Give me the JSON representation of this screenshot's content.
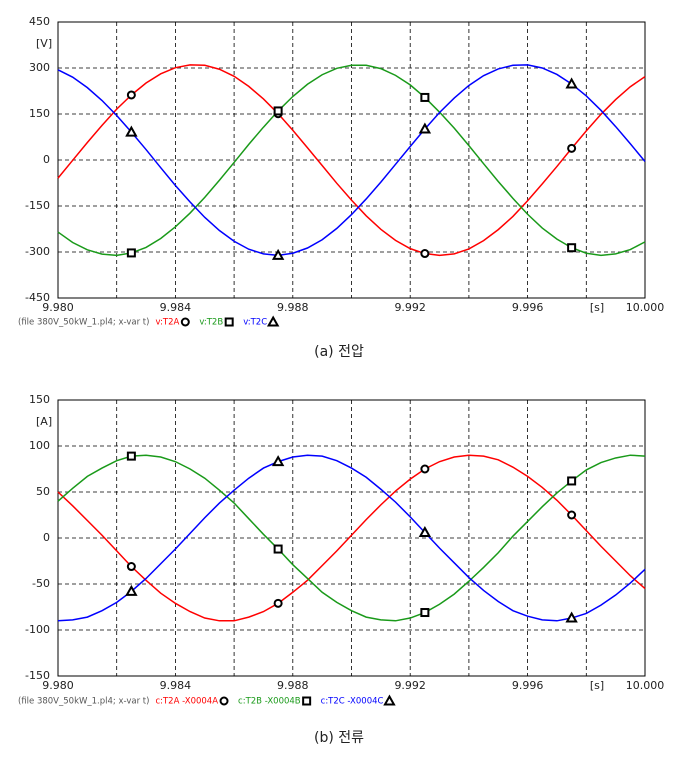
{
  "chart_data": [
    {
      "type": "line",
      "caption": "(a) 전압",
      "y_unit": "[V]",
      "x_unit": "[s]",
      "legend_prefix": "(file 380V_50kW_1.pl4; x-var t)",
      "x": [
        9.98,
        9.9805,
        9.981,
        9.9815,
        9.982,
        9.9825,
        9.983,
        9.9835,
        9.984,
        9.9845,
        9.985,
        9.9855,
        9.986,
        9.9865,
        9.987,
        9.9875,
        9.988,
        9.9885,
        9.989,
        9.9895,
        9.99,
        9.9905,
        9.991,
        9.9915,
        9.992,
        9.9925,
        9.993,
        9.9935,
        9.994,
        9.9945,
        9.995,
        9.9955,
        9.996,
        9.9965,
        9.997,
        9.9975,
        9.998,
        9.9985,
        9.999,
        9.9995,
        10
      ],
      "series": [
        {
          "name": "v:T2A",
          "color": "#ff0000",
          "marker": "circle",
          "values": [
            -59,
            -1,
            57,
            113,
            166,
            212,
            251,
            281,
            301,
            310,
            309,
            296,
            273,
            240,
            199,
            151,
            97,
            40,
            -18,
            -76,
            -131,
            -182,
            -226,
            -262,
            -289,
            -305,
            -311,
            -306,
            -290,
            -263,
            -227,
            -184,
            -133,
            -78,
            -21,
            38,
            95,
            149,
            197,
            239,
            272
          ]
        },
        {
          "name": "v:T2B",
          "color": "#1a9a1a",
          "marker": "square",
          "values": [
            -235,
            -269,
            -293,
            -307,
            -311,
            -303,
            -285,
            -256,
            -218,
            -173,
            -122,
            -66,
            -8,
            51,
            107,
            160,
            207,
            247,
            278,
            299,
            309,
            309,
            298,
            276,
            245,
            204,
            156,
            104,
            47,
            -12,
            -70,
            -125,
            -177,
            -222,
            -258,
            -286,
            -304,
            -311,
            -306,
            -292,
            -267
          ]
        },
        {
          "name": "v:T2C",
          "color": "#0000ff",
          "marker": "triangle",
          "values": [
            294,
            270,
            236,
            194,
            145,
            91,
            34,
            -25,
            -83,
            -137,
            -187,
            -230,
            -265,
            -291,
            -306,
            -311,
            -304,
            -287,
            -260,
            -223,
            -178,
            -127,
            -72,
            -14,
            44,
            101,
            155,
            202,
            243,
            275,
            297,
            309,
            310,
            300,
            279,
            248,
            209,
            162,
            109,
            53,
            -5
          ]
        }
      ],
      "xlim": [
        9.98,
        10
      ],
      "xticks": [
        {
          "value": 9.98,
          "label": "9.980"
        },
        9.984,
        9.988,
        9.992,
        9.996,
        {
          "value": 10,
          "label": "10.000"
        }
      ],
      "ylim": [
        -450,
        450
      ],
      "yticks": [
        -450,
        -300,
        -150,
        0,
        150,
        300,
        450
      ],
      "grid": true
    },
    {
      "type": "line",
      "caption": "(b) 전류",
      "y_unit": "[A]",
      "x_unit": "[s]",
      "legend_prefix": "(file 380V_50kW_1.pl4; x-var t)",
      "x": [
        9.98,
        9.9805,
        9.981,
        9.9815,
        9.982,
        9.9825,
        9.983,
        9.9835,
        9.984,
        9.9845,
        9.985,
        9.9855,
        9.986,
        9.9865,
        9.987,
        9.9875,
        9.988,
        9.9885,
        9.989,
        9.9895,
        9.99,
        9.9905,
        9.991,
        9.9915,
        9.992,
        9.9925,
        9.993,
        9.9935,
        9.994,
        9.9945,
        9.995,
        9.9955,
        9.996,
        9.9965,
        9.997,
        9.9975,
        9.998,
        9.9985,
        9.999,
        9.9995,
        10
      ],
      "series": [
        {
          "name": "c:T2A -X0004A",
          "color": "#ff0000",
          "marker": "circle",
          "values": [
            50,
            35,
            19,
            3,
            -14,
            -31,
            -46,
            -60,
            -71,
            -80,
            -87,
            -90,
            -90,
            -86,
            -80,
            -71,
            -59,
            -46,
            -30,
            -14,
            3,
            20,
            36,
            51,
            64,
            75,
            83,
            88,
            90,
            89,
            85,
            77,
            67,
            55,
            41,
            25,
            8,
            -9,
            -25,
            -41,
            -55
          ]
        },
        {
          "name": "c:T2B -X0004B",
          "color": "#1a9a1a",
          "marker": "square",
          "values": [
            40,
            54,
            67,
            76,
            84,
            89,
            90,
            88,
            83,
            75,
            65,
            52,
            38,
            21,
            4,
            -12,
            -29,
            -44,
            -59,
            -70,
            -79,
            -86,
            -89,
            -90,
            -87,
            -81,
            -72,
            -61,
            -47,
            -32,
            -16,
            2,
            18,
            34,
            49,
            62,
            74,
            82,
            87,
            90,
            89
          ]
        },
        {
          "name": "c:T2C -X0004C",
          "color": "#0000ff",
          "marker": "triangle",
          "values": [
            -90,
            -89,
            -86,
            -79,
            -70,
            -58,
            -44,
            -28,
            -12,
            5,
            22,
            38,
            52,
            65,
            76,
            83,
            88,
            90,
            89,
            84,
            76,
            66,
            53,
            39,
            23,
            6,
            -11,
            -27,
            -43,
            -57,
            -69,
            -79,
            -85,
            -89,
            -90,
            -87,
            -82,
            -73,
            -62,
            -49,
            -34
          ]
        }
      ],
      "xlim": [
        9.98,
        10
      ],
      "xticks": [
        {
          "value": 9.98,
          "label": "9.980"
        },
        9.984,
        9.988,
        9.992,
        9.996,
        {
          "value": 10,
          "label": "10.000"
        }
      ],
      "ylim": [
        -150,
        150
      ],
      "yticks": [
        -150,
        -100,
        -50,
        0,
        50,
        100,
        150
      ],
      "grid": true
    }
  ]
}
